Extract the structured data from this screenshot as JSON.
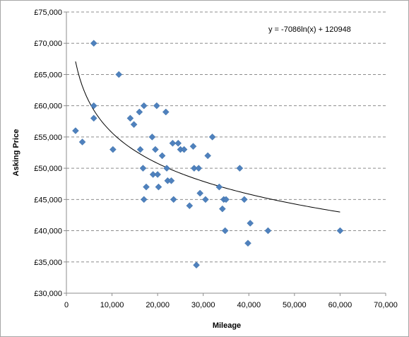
{
  "chart_data": {
    "type": "scatter",
    "title": "",
    "xlabel": "Mileage",
    "ylabel": "Asking Price",
    "xlim": [
      0,
      70000
    ],
    "ylim": [
      30000,
      75000
    ],
    "x_ticks": [
      "0",
      "10,000",
      "20,000",
      "30,000",
      "40,000",
      "50,000",
      "60,000",
      "70,000"
    ],
    "y_ticks": [
      "£30,000",
      "£35,000",
      "£40,000",
      "£45,000",
      "£50,000",
      "£55,000",
      "£60,000",
      "£65,000",
      "£70,000",
      "£75,000"
    ],
    "grid": "horizontal-dashed",
    "marker_color": "#4f81bd",
    "trendline": {
      "type": "logarithmic",
      "equation": "y = -7086ln(x) + 120948",
      "a": -7086,
      "b": 120948,
      "x_range": [
        2000,
        60000
      ],
      "color": "#000000"
    },
    "points": [
      {
        "x": 2000,
        "y": 56000
      },
      {
        "x": 3500,
        "y": 54200
      },
      {
        "x": 6000,
        "y": 70000
      },
      {
        "x": 6000,
        "y": 60000
      },
      {
        "x": 6000,
        "y": 58000
      },
      {
        "x": 10200,
        "y": 53000
      },
      {
        "x": 11500,
        "y": 65000
      },
      {
        "x": 14000,
        "y": 58000
      },
      {
        "x": 14800,
        "y": 57000
      },
      {
        "x": 16000,
        "y": 59000
      },
      {
        "x": 16200,
        "y": 53000
      },
      {
        "x": 17000,
        "y": 60000
      },
      {
        "x": 16800,
        "y": 50000
      },
      {
        "x": 17000,
        "y": 45000
      },
      {
        "x": 17500,
        "y": 47000
      },
      {
        "x": 18800,
        "y": 55000
      },
      {
        "x": 19000,
        "y": 49000
      },
      {
        "x": 19500,
        "y": 53000
      },
      {
        "x": 19800,
        "y": 60000
      },
      {
        "x": 20000,
        "y": 49000
      },
      {
        "x": 20200,
        "y": 47000
      },
      {
        "x": 21000,
        "y": 52000
      },
      {
        "x": 21800,
        "y": 59000
      },
      {
        "x": 22000,
        "y": 50000
      },
      {
        "x": 22200,
        "y": 48000
      },
      {
        "x": 23000,
        "y": 48000
      },
      {
        "x": 23300,
        "y": 54000
      },
      {
        "x": 23500,
        "y": 45000
      },
      {
        "x": 24500,
        "y": 54000
      },
      {
        "x": 25000,
        "y": 53000
      },
      {
        "x": 25800,
        "y": 53000
      },
      {
        "x": 27000,
        "y": 44000
      },
      {
        "x": 27800,
        "y": 53500
      },
      {
        "x": 28000,
        "y": 50000
      },
      {
        "x": 28500,
        "y": 34500
      },
      {
        "x": 29000,
        "y": 50000
      },
      {
        "x": 29300,
        "y": 46000
      },
      {
        "x": 30500,
        "y": 45000
      },
      {
        "x": 31000,
        "y": 52000
      },
      {
        "x": 32000,
        "y": 55000
      },
      {
        "x": 33500,
        "y": 47000
      },
      {
        "x": 34200,
        "y": 43500
      },
      {
        "x": 34500,
        "y": 45000
      },
      {
        "x": 34800,
        "y": 40000
      },
      {
        "x": 35000,
        "y": 45000
      },
      {
        "x": 38000,
        "y": 50000
      },
      {
        "x": 39000,
        "y": 45000
      },
      {
        "x": 39800,
        "y": 38000
      },
      {
        "x": 40300,
        "y": 41200
      },
      {
        "x": 44200,
        "y": 40000
      },
      {
        "x": 60000,
        "y": 40000
      }
    ]
  }
}
